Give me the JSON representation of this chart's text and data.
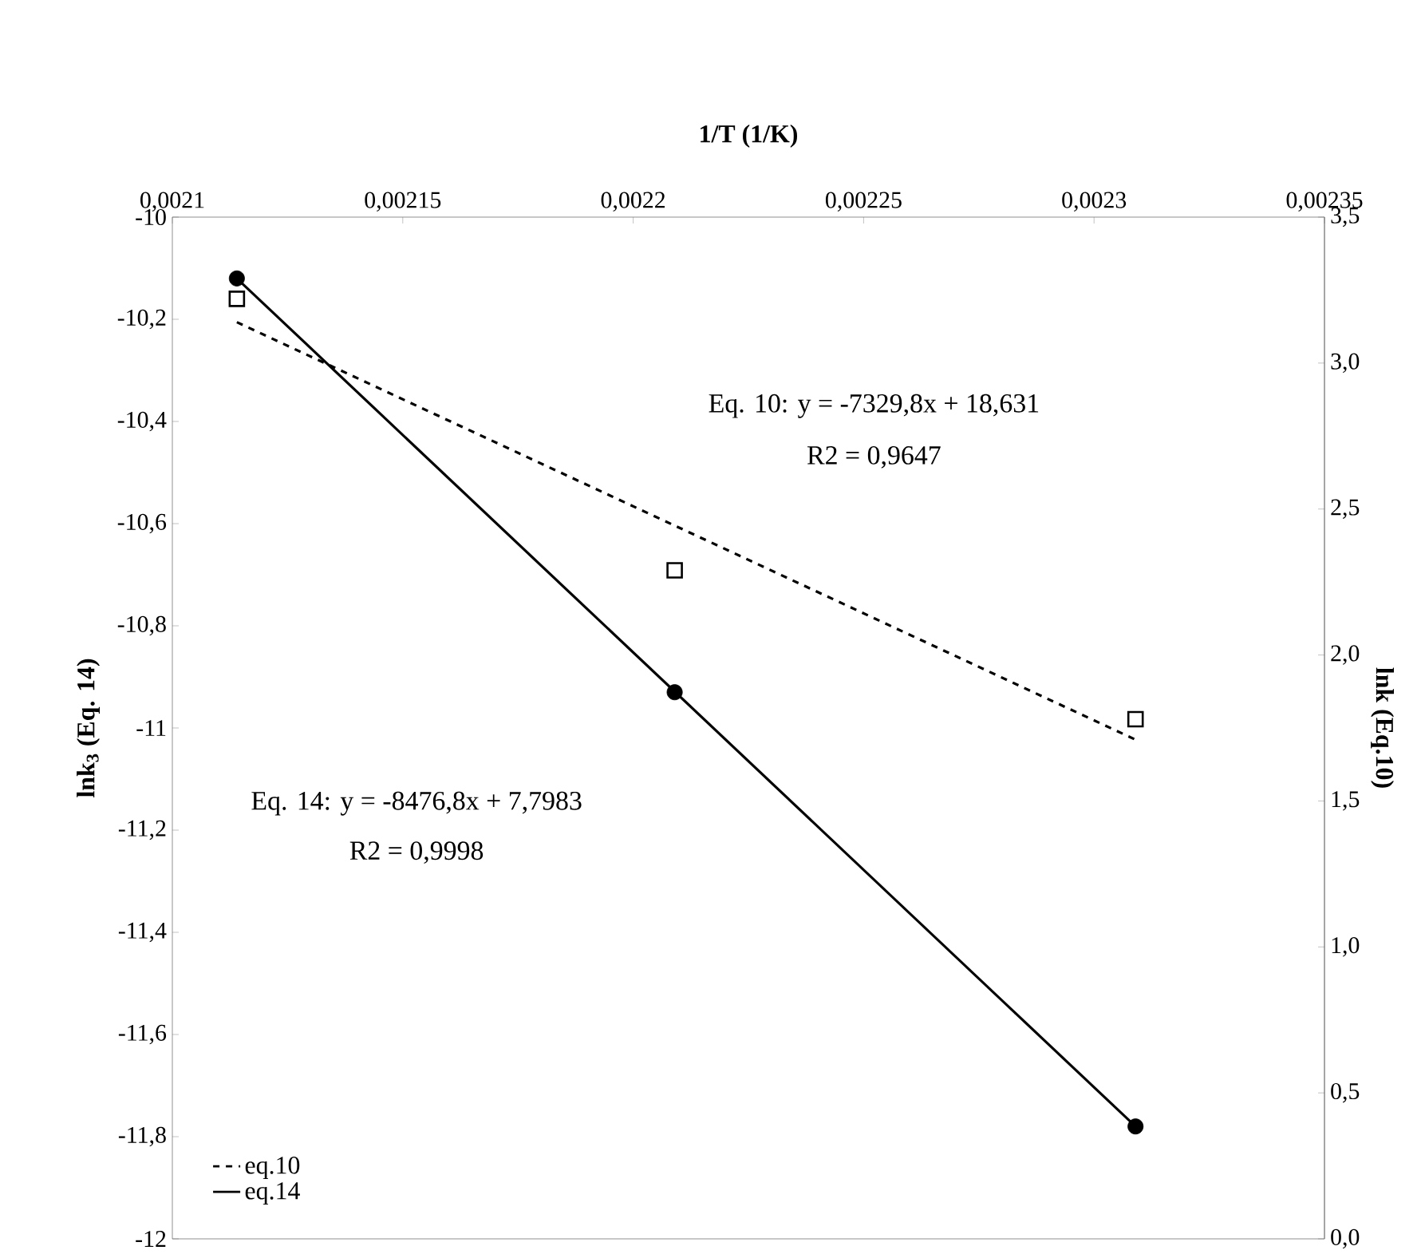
{
  "chart_data": {
    "type": "scatter",
    "xlabel": "1/T (1/K)",
    "ylabel": "lnk$_{3}$ (Eq. 14)",
    "y2label": "lnk (Eq.10)",
    "annotations": [
      "Eq. 10: y = -7329,8x + 18,631",
      "R2 = 0,9647",
      "Eq. 14: y = -8476,8x + 7,7983",
      "R2 = 0,9998"
    ],
    "series": [
      {
        "axis": "y2",
        "marker": "square",
        "color": "#000000",
        "x": [
          0.002114,
          0.002209,
          0.002309
        ],
        "values": [
          3.22,
          2.29,
          1.78
        ]
      },
      {
        "axis": "y",
        "marker": "circle",
        "color": "#000000",
        "x": [
          0.002114,
          0.002209,
          0.002309
        ],
        "values": [
          -10.12,
          -10.93,
          -11.78
        ]
      },
      {
        "type": "line",
        "name": "eq.10",
        "axis": "y2",
        "line_style": "dashed",
        "marker": "none",
        "color": "#000000",
        "x": [
          0.002114,
          0.002309
        ],
        "values": [
          3.14,
          1.71
        ]
      },
      {
        "type": "line",
        "name": "eq.14",
        "axis": "y",
        "line_style": "solid",
        "marker": "none",
        "color": "#000000",
        "x": [
          0.002114,
          0.002309
        ],
        "values": [
          -10.12,
          -11.78
        ]
      }
    ],
    "xlim": [
      0.0021,
      0.00235
    ],
    "xticks": [
      {
        "value": 0.0021,
        "label": "0,0021"
      },
      {
        "value": 0.00215,
        "label": "0,00215"
      },
      {
        "value": 0.0022,
        "label": "0,0022"
      },
      {
        "value": 0.00225,
        "label": "0,00225"
      },
      {
        "value": 0.0023,
        "label": "0,0023"
      },
      {
        "value": 0.00235,
        "label": "0,00235"
      }
    ],
    "ylim": [
      -12,
      -10
    ],
    "yticks": [
      -10,
      {
        "value": -10.2,
        "label": "-10,2"
      },
      {
        "value": -10.4,
        "label": "-10,4"
      },
      {
        "value": -10.6,
        "label": "-10,6"
      },
      {
        "value": -10.8,
        "label": "-10,8"
      },
      -11,
      {
        "value": -11.2,
        "label": "-11,2"
      },
      {
        "value": -11.4,
        "label": "-11,4"
      },
      {
        "value": -11.6,
        "label": "-11,6"
      },
      {
        "value": -11.8,
        "label": "-11,8"
      },
      -12
    ],
    "y2lim": [
      0,
      3.5
    ],
    "y2ticks": [
      {
        "value": 0,
        "label": "0,0"
      },
      {
        "value": 0.5,
        "label": "0,5"
      },
      {
        "value": 1,
        "label": "1,0"
      },
      {
        "value": 1.5,
        "label": "1,5"
      },
      {
        "value": 2,
        "label": "2,0"
      },
      {
        "value": 2.5,
        "label": "2,5"
      },
      {
        "value": 3,
        "label": "3,0"
      },
      {
        "value": 3.5,
        "label": "3,5"
      }
    ],
    "legend": "bottom left"
  }
}
